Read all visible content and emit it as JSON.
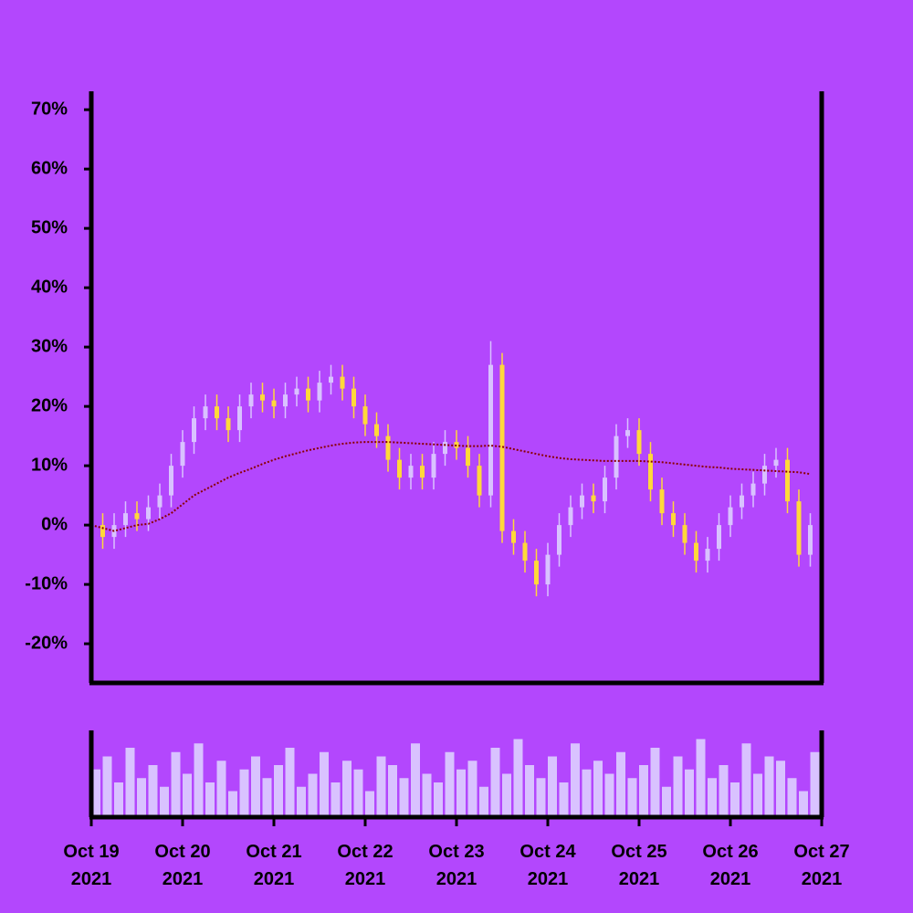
{
  "chart_data": {
    "type": "candlestick",
    "x": [
      0,
      0.125,
      0.25,
      0.375,
      0.5,
      0.625,
      0.75,
      0.875,
      1,
      1.125,
      1.25,
      1.375,
      1.5,
      1.625,
      1.75,
      1.875,
      2,
      2.125,
      2.25,
      2.375,
      2.5,
      2.625,
      2.75,
      2.875,
      3,
      3.125,
      3.25,
      3.375,
      3.5,
      3.625,
      3.75,
      3.875,
      4,
      4.125,
      4.25,
      4.375,
      4.5,
      4.625,
      4.75,
      4.875,
      5,
      5.125,
      5.25,
      5.375,
      5.5,
      5.625,
      5.75,
      5.875,
      6,
      6.125,
      6.25,
      6.375,
      6.5,
      6.625,
      6.75,
      6.875,
      7,
      7.125,
      7.25,
      7.375,
      7.5,
      7.625,
      7.75,
      7.875
    ],
    "open": [
      2,
      0,
      -2,
      0,
      2,
      1,
      3,
      5,
      10,
      14,
      18,
      20,
      18,
      16,
      20,
      22,
      21,
      20,
      22,
      23,
      21,
      24,
      25,
      23,
      20,
      17,
      15,
      11,
      8,
      10,
      8,
      12,
      14,
      13,
      10,
      5,
      27,
      -1,
      -3,
      -6,
      -10,
      -5,
      0,
      3,
      5,
      4,
      8,
      15,
      16,
      12,
      6,
      2,
      0,
      -3,
      -6,
      -4,
      0,
      3,
      5,
      7,
      10,
      11,
      4,
      -5
    ],
    "high": [
      4,
      2,
      2,
      4,
      4,
      5,
      7,
      12,
      16,
      20,
      22,
      22,
      20,
      22,
      24,
      24,
      23,
      24,
      25,
      25,
      26,
      27,
      27,
      25,
      22,
      19,
      17,
      13,
      12,
      12,
      14,
      16,
      16,
      15,
      12,
      31,
      29,
      1,
      -1,
      -4,
      -3,
      2,
      5,
      7,
      7,
      10,
      17,
      18,
      18,
      14,
      8,
      4,
      2,
      -1,
      -2,
      2,
      5,
      7,
      9,
      12,
      13,
      13,
      6,
      2
    ],
    "low": [
      -2,
      -4,
      -4,
      -2,
      -1,
      -1,
      1,
      3,
      8,
      12,
      16,
      16,
      14,
      14,
      18,
      19,
      18,
      18,
      20,
      19,
      19,
      22,
      21,
      18,
      15,
      13,
      9,
      6,
      6,
      6,
      6,
      10,
      11,
      8,
      3,
      3,
      -3,
      -5,
      -8,
      -12,
      -12,
      -7,
      -2,
      1,
      2,
      2,
      6,
      13,
      10,
      4,
      0,
      -2,
      -5,
      -8,
      -8,
      -6,
      -2,
      1,
      3,
      5,
      8,
      2,
      -7,
      -7
    ],
    "close": [
      0,
      -2,
      0,
      2,
      1,
      3,
      5,
      10,
      14,
      18,
      20,
      18,
      16,
      20,
      22,
      21,
      20,
      22,
      23,
      21,
      24,
      25,
      23,
      20,
      17,
      15,
      11,
      8,
      10,
      8,
      12,
      14,
      13,
      10,
      5,
      27,
      -1,
      -3,
      -6,
      -10,
      -5,
      0,
      3,
      5,
      4,
      8,
      15,
      16,
      12,
      6,
      2,
      0,
      -3,
      -6,
      -4,
      0,
      3,
      5,
      7,
      10,
      11,
      4,
      -5,
      0
    ],
    "up_color": "#d9c2ff",
    "down_color": "#ffd83a",
    "ma": {
      "color": "#8b0000",
      "values": [
        0,
        -0.5,
        -1,
        -0.5,
        0,
        0.2,
        1,
        2,
        3.5,
        5,
        6,
        7,
        8,
        8.8,
        9.5,
        10.3,
        11,
        11.6,
        12.1,
        12.6,
        13,
        13.4,
        13.7,
        13.9,
        14,
        14,
        14,
        13.9,
        13.8,
        13.7,
        13.6,
        13.5,
        13.4,
        13.3,
        13.3,
        13.4,
        13.2,
        12.8,
        12.4,
        12,
        11.6,
        11.3,
        11.1,
        11,
        10.9,
        10.8,
        10.8,
        10.8,
        10.8,
        10.7,
        10.6,
        10.4,
        10.2,
        10,
        9.8,
        9.7,
        9.5,
        9.4,
        9.3,
        9.2,
        9.1,
        9,
        8.9,
        8.6
      ]
    },
    "volume": {
      "color": "#d9c2ff",
      "ylim": [
        0,
        100
      ],
      "values": [
        55,
        70,
        40,
        80,
        45,
        60,
        35,
        75,
        50,
        85,
        40,
        65,
        30,
        55,
        70,
        45,
        60,
        80,
        35,
        50,
        75,
        40,
        65,
        55,
        30,
        70,
        60,
        45,
        85,
        50,
        40,
        75,
        55,
        65,
        35,
        80,
        50,
        90,
        60,
        45,
        70,
        40,
        85,
        55,
        65,
        50,
        75,
        45,
        60,
        80,
        35,
        70,
        55,
        90,
        45,
        60,
        40,
        85,
        50,
        70,
        65,
        45,
        30,
        75
      ]
    },
    "xlim": [
      0,
      8
    ],
    "xticks": [
      {
        "value": 0,
        "label": "Oct 19\n2021"
      },
      {
        "value": 1,
        "label": "Oct 20\n2021"
      },
      {
        "value": 2,
        "label": "Oct 21\n2021"
      },
      {
        "value": 3,
        "label": "Oct 22\n2021"
      },
      {
        "value": 4,
        "label": "Oct 23\n2021"
      },
      {
        "value": 5,
        "label": "Oct 24\n2021"
      },
      {
        "value": 6,
        "label": "Oct 25\n2021"
      },
      {
        "value": 7,
        "label": "Oct 26\n2021"
      },
      {
        "value": 8,
        "label": "Oct 27\n2021"
      }
    ],
    "ylim": [
      -26.6,
      73.1
    ],
    "yticks": [
      {
        "value": -20,
        "label": "-20%"
      },
      {
        "value": -10,
        "label": "-10%"
      },
      {
        "value": 0,
        "label": "0%"
      },
      {
        "value": 10,
        "label": "10%"
      },
      {
        "value": 20,
        "label": "20%"
      },
      {
        "value": 30,
        "label": "30%"
      },
      {
        "value": 40,
        "label": "40%"
      },
      {
        "value": 50,
        "label": "50%"
      },
      {
        "value": 60,
        "label": "60%"
      },
      {
        "value": 70,
        "label": "70%"
      }
    ]
  }
}
